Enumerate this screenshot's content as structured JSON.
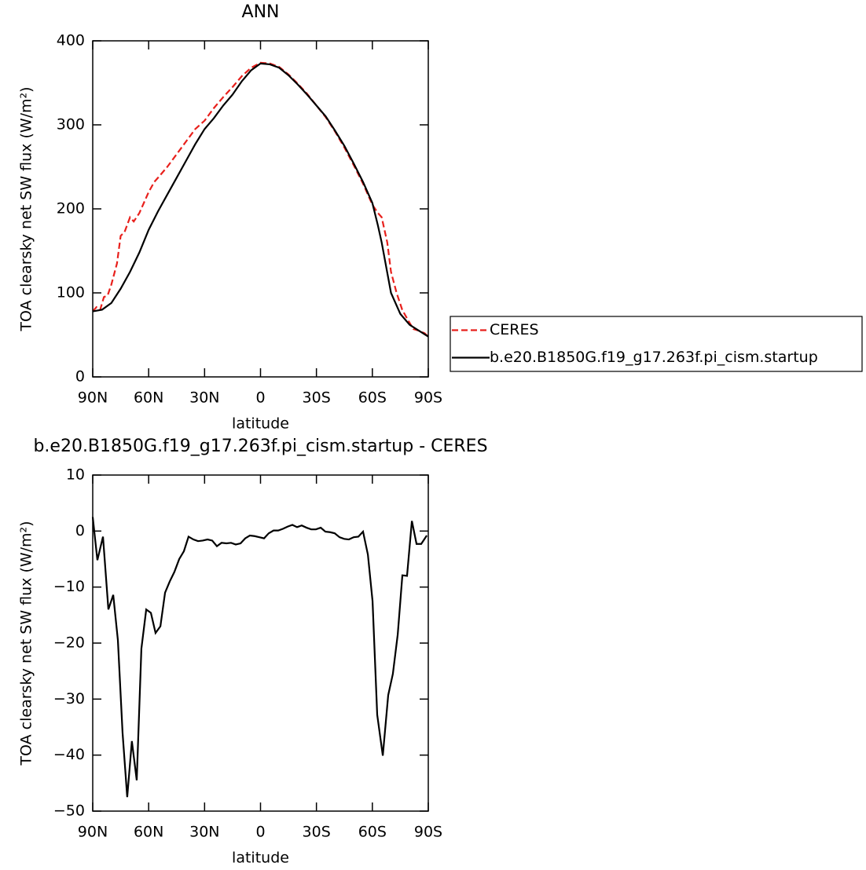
{
  "chart_data": [
    {
      "type": "line",
      "title": "ANN",
      "x_label": "latitude",
      "y_label": "TOA clearsky net SW flux (W/m²)",
      "xlim": [
        90,
        -90
      ],
      "xticks": [
        {
          "value": 90,
          "label": "90N"
        },
        {
          "value": 60,
          "label": "60N"
        },
        {
          "value": 30,
          "label": "30N"
        },
        0,
        {
          "value": -30,
          "label": "30S"
        },
        {
          "value": -60,
          "label": "60S"
        },
        {
          "value": -90,
          "label": "90S"
        }
      ],
      "ylim": [
        0,
        400
      ],
      "yticks": [
        0,
        100,
        200,
        300,
        400
      ],
      "series": [
        {
          "name": "CERES",
          "color": "#e8201c",
          "dashed": true,
          "x": [
            90,
            88,
            86,
            84,
            82,
            80,
            77,
            75,
            73,
            70,
            68,
            65,
            62,
            60,
            57,
            55,
            50,
            45,
            40,
            35,
            30,
            25,
            20,
            15,
            10,
            5,
            0,
            -5,
            -10,
            -15,
            -20,
            -25,
            -30,
            -35,
            -40,
            -45,
            -50,
            -55,
            -60,
            -63,
            -65,
            -68,
            -70,
            -73,
            -76,
            -79,
            -82,
            -85,
            -88,
            -90
          ],
          "values": [
            78,
            83,
            80,
            95,
            97,
            110,
            135,
            168,
            172,
            190,
            185,
            195,
            210,
            220,
            232,
            237,
            250,
            265,
            280,
            295,
            305,
            320,
            333,
            345,
            358,
            368,
            374,
            373,
            369,
            360,
            349,
            337,
            323,
            309,
            292,
            273,
            252,
            230,
            205,
            195,
            190,
            160,
            125,
            100,
            80,
            68,
            57,
            55,
            52,
            48
          ]
        },
        {
          "name": "b.e20.B1850G.f19_g17.263f.pi_cism.startup",
          "color": "#000000",
          "dashed": false,
          "x": [
            90,
            85,
            80,
            75,
            70,
            65,
            60,
            55,
            50,
            45,
            40,
            35,
            30,
            25,
            20,
            15,
            10,
            5,
            0,
            -5,
            -10,
            -15,
            -20,
            -25,
            -30,
            -35,
            -40,
            -45,
            -50,
            -55,
            -60,
            -63,
            -65,
            -70,
            -75,
            -80,
            -85,
            -90
          ],
          "values": [
            78,
            80,
            88,
            105,
            125,
            148,
            175,
            197,
            217,
            237,
            257,
            277,
            295,
            308,
            323,
            336,
            352,
            365,
            373,
            372,
            368,
            359,
            348,
            336,
            323,
            310,
            293,
            275,
            254,
            232,
            207,
            180,
            160,
            100,
            75,
            62,
            55,
            48
          ]
        }
      ]
    },
    {
      "type": "line",
      "title": "b.e20.B1850G.f19_g17.263f.pi_cism.startup - CERES",
      "x_label": "latitude",
      "y_label": "TOA clearsky net SW flux (W/m²)",
      "xlim": [
        90,
        -90
      ],
      "xticks": [
        {
          "value": 90,
          "label": "90N"
        },
        {
          "value": 60,
          "label": "60N"
        },
        {
          "value": 30,
          "label": "30N"
        },
        0,
        {
          "value": -30,
          "label": "30S"
        },
        {
          "value": -60,
          "label": "60S"
        },
        {
          "value": -90,
          "label": "90S"
        }
      ],
      "ylim": [
        -50,
        10
      ],
      "yticks": [
        {
          "value": -50,
          "label": "−50"
        },
        {
          "value": -40,
          "label": "−40"
        },
        {
          "value": -30,
          "label": "−30"
        },
        {
          "value": -20,
          "label": "−20"
        },
        {
          "value": -10,
          "label": "−10"
        },
        0,
        10
      ],
      "series": [
        {
          "color": "#000000",
          "dashed": false,
          "x": [
            90,
            87.5,
            84.5,
            81.6,
            79,
            76.5,
            74,
            71.5,
            69,
            66.4,
            63.9,
            61.3,
            58.8,
            56.3,
            53.7,
            51.2,
            48.7,
            46.2,
            43.6,
            41.1,
            38.6,
            36,
            33.5,
            31,
            28.4,
            25.9,
            23.4,
            20.9,
            18.3,
            15.8,
            13.3,
            10.7,
            8.2,
            5.7,
            3.2,
            0.6,
            -1.9,
            -4.4,
            -7,
            -9.5,
            -12,
            -14.6,
            -17.1,
            -19.6,
            -22.1,
            -24.7,
            -27.2,
            -29.7,
            -32.3,
            -34.8,
            -37.3,
            -39.8,
            -42.4,
            -44.9,
            -47.4,
            -50,
            -52.5,
            -55,
            -57.6,
            -60.1,
            -62.6,
            -65.6,
            -68.5,
            -71,
            -73.6,
            -76.1,
            -78.6,
            -81.2,
            -83.7,
            -86.2,
            -89.2
          ],
          "values": [
            2.5,
            -5.2,
            -1,
            -14,
            -11.4,
            -19.5,
            -36,
            -47.5,
            -37.5,
            -44.5,
            -21,
            -14,
            -14.6,
            -18.2,
            -17,
            -11,
            -9,
            -7.3,
            -5,
            -3.6,
            -1,
            -1.5,
            -1.8,
            -1.7,
            -1.5,
            -1.7,
            -2.7,
            -2.1,
            -2.2,
            -2.1,
            -2.4,
            -2.2,
            -1.3,
            -0.8,
            -0.9,
            -1.1,
            -1.3,
            -0.4,
            0.1,
            0.1,
            0.4,
            0.8,
            1.1,
            0.7,
            1,
            0.6,
            0.3,
            0.3,
            0.6,
            -0.1,
            -0.2,
            -0.4,
            -1.1,
            -1.4,
            -1.5,
            -1.1,
            -1,
            -0.1,
            -4.2,
            -12.5,
            -32.8,
            -40.1,
            -29.3,
            -25.5,
            -18.5,
            -7.9,
            -8,
            1.8,
            -2.3,
            -2.3,
            -0.8
          ]
        }
      ]
    }
  ]
}
